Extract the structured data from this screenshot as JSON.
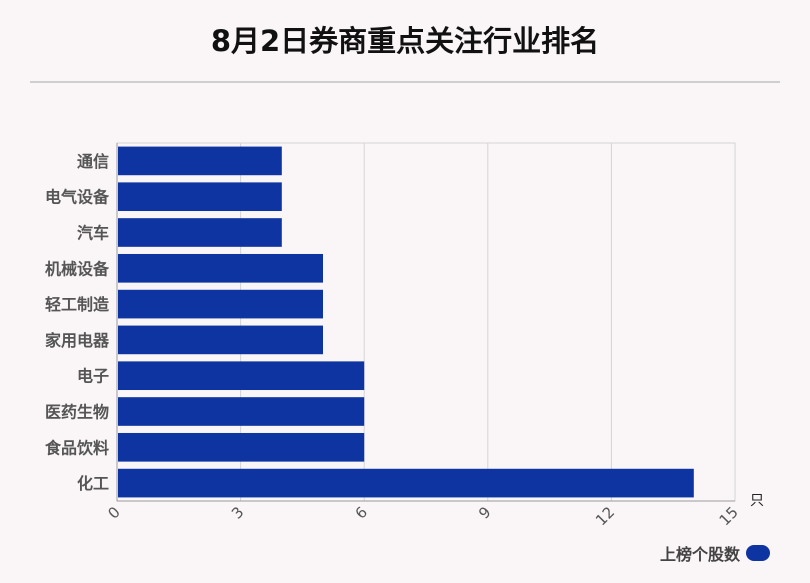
{
  "title": "8月2日券商重点关注行业排名",
  "colors": {
    "bar": "#0d34a0",
    "grid": "#d4d4d4",
    "axis": "#999999"
  },
  "chart_data": {
    "type": "bar",
    "orientation": "horizontal",
    "categories": [
      "通信",
      "电气设备",
      "汽车",
      "机械设备",
      "轻工制造",
      "家用电器",
      "电子",
      "医药生物",
      "食品饮料",
      "化工"
    ],
    "series": [
      {
        "name": "上榜个股数",
        "values": [
          4,
          4,
          4,
          5,
          5,
          5,
          6,
          6,
          6,
          14
        ]
      }
    ],
    "xlim": [
      0,
      15
    ],
    "xticks": [
      0,
      3,
      6,
      9,
      12,
      15
    ],
    "xunit": "只",
    "grid": true,
    "legend_position": "bottom-right"
  }
}
